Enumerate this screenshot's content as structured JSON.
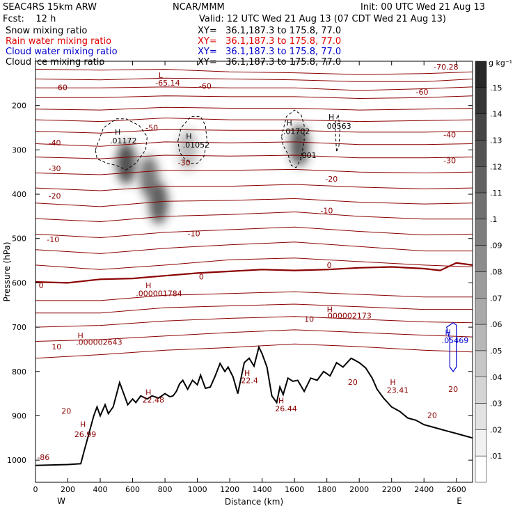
{
  "header": {
    "model": "SEAC4RS 15km ARW",
    "org": "NCAR/MMM",
    "init": "Init: 00 UTC Wed 21 Aug 13",
    "fcst": "Fcst:    12 h",
    "valid": "Valid: 12 UTC Wed 21 Aug 13 (07 CDT Wed 21 Aug 13)",
    "fields": [
      {
        "name": "Snow mixing ratio",
        "xy": "XY=   36.1,187.3 to 175.8, 77.0",
        "color": "#000000"
      },
      {
        "name": "Rain water mixing ratio",
        "xy": "XY=   36.1,187.3 to 175.8, 77.0",
        "color": "#e00000"
      },
      {
        "name": "Cloud water mixing ratio",
        "xy": "XY=   36.1,187.3 to 175.8, 77.0",
        "color": "#0000cc"
      },
      {
        "name": "Cloud ice mixing ratio",
        "xy": "XY=   36.1,187.3 to 175.8, 77.0",
        "color": "#000000"
      }
    ]
  },
  "colors": {
    "temperature_contour": "#8b0000",
    "zero_contour": "#8b0000",
    "terrain": "#000000",
    "cloud_water": "#0000cc",
    "shading": "#333333"
  },
  "chart_data": {
    "type": "cross-section",
    "xlabel": "Distance (km)",
    "ylabel": "Pressure (hPa)",
    "xlim": [
      0,
      2700
    ],
    "ylim": [
      1050,
      100
    ],
    "x_ticks": [
      "0",
      "200",
      "400",
      "600",
      "800",
      "1000",
      "1200",
      "1400",
      "1600",
      "1800",
      "2000",
      "2200",
      "2400",
      "2600"
    ],
    "y_ticks": [
      "200",
      "300",
      "400",
      "500",
      "600",
      "700",
      "800",
      "900",
      "1000"
    ],
    "y_tick_values": [
      200,
      300,
      400,
      500,
      600,
      700,
      800,
      900,
      1000
    ],
    "x_endpoints": {
      "left": "W",
      "right": "E"
    },
    "colorbar": {
      "unit": "g kg⁻¹",
      "labels": [
        ".01",
        ".02",
        ".03",
        ".04",
        ".05",
        ".06",
        ".07",
        ".08",
        ".09",
        ".1",
        ".11",
        ".12",
        ".13",
        ".14",
        ".15"
      ],
      "levels": [
        0.01,
        0.02,
        0.03,
        0.04,
        0.05,
        0.06,
        0.07,
        0.08,
        0.09,
        0.1,
        0.11,
        0.12,
        0.13,
        0.14,
        0.15
      ]
    },
    "terrain": {
      "x": [
        0,
        200,
        280,
        300,
        330,
        360,
        380,
        400,
        430,
        450,
        480,
        520,
        570,
        600,
        620,
        650,
        690,
        720,
        760,
        800,
        830,
        850,
        870,
        890,
        910,
        940,
        970,
        1000,
        1020,
        1050,
        1080,
        1110,
        1140,
        1170,
        1190,
        1220,
        1250,
        1290,
        1320,
        1350,
        1380,
        1400,
        1430,
        1460,
        1490,
        1510,
        1530,
        1560,
        1590,
        1620,
        1660,
        1700,
        1740,
        1780,
        1820,
        1860,
        1900,
        1950,
        2000,
        2040,
        2080,
        2110,
        2150,
        2200,
        2250,
        2300,
        2350,
        2400,
        2450,
        2500,
        2550,
        2600,
        2650,
        2700
      ],
      "p": [
        1012,
        1010,
        1008,
        980,
        940,
        900,
        880,
        900,
        875,
        895,
        880,
        825,
        875,
        862,
        870,
        855,
        862,
        855,
        860,
        850,
        857,
        855,
        845,
        828,
        820,
        840,
        820,
        830,
        808,
        838,
        835,
        810,
        782,
        800,
        790,
        812,
        850,
        780,
        770,
        788,
        745,
        760,
        790,
        855,
        870,
        835,
        852,
        815,
        822,
        820,
        845,
        815,
        820,
        800,
        810,
        780,
        790,
        770,
        780,
        792,
        815,
        840,
        860,
        880,
        890,
        905,
        910,
        920,
        925,
        930,
        935,
        940,
        945,
        950
      ]
    },
    "isotherms": [
      {
        "label": "-60",
        "x": [
          0,
          400,
          800,
          1200,
          1600,
          2000,
          2400,
          2700
        ],
        "p": [
          118,
          120,
          118,
          124,
          126,
          130,
          128,
          124
        ]
      },
      {
        "label": "-60",
        "x": [
          0,
          400,
          800,
          1200,
          1600,
          2000,
          2400,
          2700
        ],
        "p": [
          140,
          142,
          138,
          140,
          142,
          146,
          146,
          140
        ]
      },
      {
        "label": "-60",
        "x": [
          0,
          400,
          800,
          1200,
          1600,
          2000,
          2400,
          2700
        ],
        "p": [
          160,
          160,
          158,
          160,
          160,
          166,
          162,
          158
        ]
      },
      {
        "label": "-50",
        "x": [
          0,
          400,
          800,
          1200,
          1600,
          2000,
          2400,
          2700
        ],
        "p": [
          182,
          182,
          178,
          180,
          180,
          184,
          182,
          178
        ]
      },
      {
        "label": "-40",
        "x": [
          0,
          400,
          800,
          1200,
          1600,
          2000,
          2400,
          2700
        ],
        "p": [
          208,
          210,
          204,
          206,
          206,
          210,
          208,
          206
        ]
      },
      {
        "label": "-40",
        "x": [
          0,
          400,
          800,
          1200,
          1600,
          2000,
          2400,
          2700
        ],
        "p": [
          232,
          236,
          228,
          232,
          232,
          236,
          234,
          232
        ]
      },
      {
        "label": "-30",
        "x": [
          0,
          400,
          800,
          1200,
          1600,
          2000,
          2400,
          2700
        ],
        "p": [
          258,
          262,
          254,
          256,
          256,
          260,
          260,
          258
        ]
      },
      {
        "label": "-30",
        "x": [
          0,
          400,
          800,
          1200,
          1600,
          2000,
          2400,
          2700
        ],
        "p": [
          286,
          292,
          282,
          284,
          282,
          288,
          288,
          286
        ]
      },
      {
        "label": "-20",
        "x": [
          0,
          400,
          800,
          1200,
          1600,
          2000,
          2400,
          2700
        ],
        "p": [
          316,
          320,
          312,
          314,
          312,
          318,
          318,
          316
        ]
      },
      {
        "label": "-20",
        "x": [
          0,
          400,
          800,
          1200,
          1600,
          2000,
          2400,
          2700
        ],
        "p": [
          352,
          356,
          346,
          346,
          344,
          350,
          352,
          350
        ]
      },
      {
        "label": "-10",
        "x": [
          0,
          400,
          800,
          1200,
          1600,
          2000,
          2400,
          2700
        ],
        "p": [
          386,
          392,
          382,
          382,
          378,
          384,
          388,
          386
        ]
      },
      {
        "label": "-10",
        "x": [
          0,
          400,
          800,
          1200,
          1600,
          2000,
          2400,
          2700
        ],
        "p": [
          420,
          428,
          416,
          414,
          410,
          418,
          422,
          420
        ]
      },
      {
        "label": "-10",
        "x": [
          0,
          400,
          800,
          1200,
          1600,
          2000,
          2400,
          2700
        ],
        "p": [
          455,
          462,
          450,
          446,
          440,
          450,
          456,
          456
        ]
      },
      {
        "label": "0",
        "x": [
          0,
          400,
          800,
          1200,
          1600,
          2000,
          2400,
          2700
        ],
        "p": [
          490,
          498,
          486,
          480,
          474,
          484,
          492,
          490
        ]
      },
      {
        "label": "0",
        "x": [
          0,
          400,
          800,
          1200,
          1600,
          2000,
          2400,
          2700
        ],
        "p": [
          525,
          534,
          522,
          514,
          508,
          518,
          528,
          528
        ]
      },
      {
        "label": "10",
        "x": [
          0,
          400,
          800,
          1200,
          1600,
          2000,
          2400,
          2700
        ],
        "p": [
          560,
          570,
          560,
          548,
          544,
          552,
          560,
          564
        ]
      },
      {
        "label": "10",
        "x": [
          0,
          400,
          800,
          1200,
          1600,
          2000,
          2400,
          2700
        ],
        "p": [
          640,
          640,
          628,
          624,
          620,
          626,
          632,
          632
        ]
      },
      {
        "label": "10",
        "x": [
          0,
          400,
          800,
          1200,
          1600,
          2000,
          2400,
          2700
        ],
        "p": [
          668,
          668,
          656,
          652,
          648,
          654,
          660,
          660
        ]
      },
      {
        "label": "10",
        "x": [
          0,
          400,
          800,
          1200,
          1600,
          2000,
          2400,
          2700
        ],
        "p": [
          700,
          696,
          686,
          680,
          676,
          682,
          688,
          690
        ]
      },
      {
        "label": "20",
        "x": [
          0,
          400,
          800,
          1200,
          1600,
          2000,
          2400,
          2700
        ],
        "p": [
          732,
          728,
          720,
          712,
          706,
          712,
          718,
          722
        ]
      },
      {
        "label": "20",
        "x": [
          0,
          400,
          800,
          1200,
          1600,
          2000,
          2400,
          2700
        ],
        "p": [
          770,
          762,
          752,
          746,
          738,
          744,
          752,
          756
        ]
      }
    ],
    "zero_isotherm": {
      "label": "0",
      "x": [
        0,
        200,
        400,
        600,
        800,
        1000,
        1200,
        1400,
        1600,
        1800,
        2000,
        2200,
        2400,
        2500,
        2600,
        2700
      ],
      "p": [
        598,
        600,
        592,
        590,
        584,
        578,
        574,
        570,
        572,
        570,
        566,
        564,
        568,
        572,
        555,
        560
      ]
    },
    "shading": [
      {
        "x": 560,
        "p": 330,
        "value": 0.13
      },
      {
        "x": 700,
        "p": 360,
        "value": 0.1
      },
      {
        "x": 760,
        "p": 420,
        "value": 0.12
      },
      {
        "x": 940,
        "p": 300,
        "value": 0.05
      },
      {
        "x": 1630,
        "p": 290,
        "value": 0.12
      }
    ],
    "labels": [
      {
        "text": "L",
        "x": 760,
        "p": 138,
        "cls": "clab"
      },
      {
        "text": "-65.14",
        "x": 740,
        "p": 155,
        "cls": "clab"
      },
      {
        "text": "-70.28",
        "x": 2460,
        "p": 119,
        "cls": "clab"
      },
      {
        "text": "-60",
        "x": 120,
        "p": 165,
        "cls": "clab"
      },
      {
        "text": "-60",
        "x": 1010,
        "p": 162,
        "cls": "clab"
      },
      {
        "text": "-60",
        "x": 2350,
        "p": 175,
        "cls": "clab"
      },
      {
        "text": "-50",
        "x": 680,
        "p": 256,
        "cls": "clab"
      },
      {
        "text": "-40",
        "x": 80,
        "p": 290,
        "cls": "clab"
      },
      {
        "text": "-40",
        "x": 2520,
        "p": 272,
        "cls": "clab"
      },
      {
        "text": "-30",
        "x": 80,
        "p": 348,
        "cls": "clab"
      },
      {
        "text": "-30",
        "x": 880,
        "p": 335,
        "cls": "clab"
      },
      {
        "text": "-30",
        "x": 2520,
        "p": 330,
        "cls": "clab"
      },
      {
        "text": "-20",
        "x": 80,
        "p": 410,
        "cls": "clab"
      },
      {
        "text": "-20",
        "x": 1790,
        "p": 372,
        "cls": "clab"
      },
      {
        "text": "-10",
        "x": 70,
        "p": 508,
        "cls": "clab"
      },
      {
        "text": "-10",
        "x": 940,
        "p": 495,
        "cls": "clab"
      },
      {
        "text": "-10",
        "x": 1760,
        "p": 443,
        "cls": "clab"
      },
      {
        "text": "0",
        "x": 20,
        "p": 612,
        "cls": "clab"
      },
      {
        "text": "0",
        "x": 1010,
        "p": 592,
        "cls": "clab"
      },
      {
        "text": "0",
        "x": 1800,
        "p": 566,
        "cls": "clab"
      },
      {
        "text": "H",
        "x": 680,
        "p": 612,
        "cls": "clab"
      },
      {
        "text": ".000001784",
        "x": 620,
        "p": 630,
        "cls": "clab"
      },
      {
        "text": "H",
        "x": 1800,
        "p": 666,
        "cls": "clab"
      },
      {
        "text": ".000002173",
        "x": 1790,
        "p": 680,
        "cls": "clab"
      },
      {
        "text": "10",
        "x": 1660,
        "p": 688,
        "cls": "clab"
      },
      {
        "text": "H",
        "x": 260,
        "p": 725,
        "cls": "clab"
      },
      {
        "text": ".000002643",
        "x": 250,
        "p": 740,
        "cls": "clab"
      },
      {
        "text": "10",
        "x": 100,
        "p": 750,
        "cls": "clab"
      },
      {
        "text": "20",
        "x": 1930,
        "p": 830,
        "cls": "clab"
      },
      {
        "text": "20",
        "x": 2550,
        "p": 846,
        "cls": "clab"
      },
      {
        "text": "20",
        "x": 160,
        "p": 895,
        "cls": "clab"
      },
      {
        "text": "20",
        "x": 2420,
        "p": 905,
        "cls": "clab"
      },
      {
        "text": "H",
        "x": 275,
        "p": 925,
        "cls": "clab"
      },
      {
        "text": "26.99",
        "x": 240,
        "p": 948,
        "cls": "clab"
      },
      {
        "text": "H",
        "x": 680,
        "p": 853,
        "cls": "clab"
      },
      {
        "text": "22.48",
        "x": 660,
        "p": 870,
        "cls": "clab"
      },
      {
        "text": "H",
        "x": 1290,
        "p": 810,
        "cls": "clab"
      },
      {
        "text": "22.4",
        "x": 1270,
        "p": 826,
        "cls": "clab"
      },
      {
        "text": "H",
        "x": 1500,
        "p": 872,
        "cls": "clab"
      },
      {
        "text": "26.44",
        "x": 1480,
        "p": 890,
        "cls": "clab"
      },
      {
        "text": "H",
        "x": 2190,
        "p": 830,
        "cls": "clab"
      },
      {
        "text": "23.41",
        "x": 2170,
        "p": 848,
        "cls": "clab"
      },
      {
        "text": "-86",
        "x": 10,
        "p": 1000,
        "cls": "clab"
      },
      {
        "text": "H",
        "x": 490,
        "p": 266,
        "cls": "blab"
      },
      {
        "text": ".01172",
        "x": 460,
        "p": 285,
        "cls": "blab"
      },
      {
        "text": "H",
        "x": 930,
        "p": 275,
        "cls": "blab"
      },
      {
        "text": ".01052",
        "x": 910,
        "p": 295,
        "cls": "blab"
      },
      {
        "text": "H",
        "x": 1550,
        "p": 245,
        "cls": "blab"
      },
      {
        "text": ".01702",
        "x": 1530,
        "p": 264,
        "cls": "blab"
      },
      {
        "text": ".001",
        "x": 1630,
        "p": 318,
        "cls": "blab"
      },
      {
        "text": "H",
        "x": 1810,
        "p": 232,
        "cls": "blab"
      },
      {
        "text": "00563",
        "x": 1800,
        "p": 252,
        "cls": "blab"
      },
      {
        "text": "H",
        "x": 2530,
        "p": 718,
        "cls": "bluelab"
      },
      {
        "text": ".05469",
        "x": 2510,
        "p": 736,
        "cls": "bluelab"
      }
    ],
    "dashed_regions": [
      {
        "x": [
          370,
          420,
          500,
          560,
          640,
          690,
          680,
          620,
          560,
          500,
          440,
          380,
          370
        ],
        "p": [
          300,
          250,
          230,
          230,
          245,
          270,
          300,
          330,
          345,
          335,
          330,
          320,
          300
        ]
      },
      {
        "x": [
          880,
          900,
          960,
          1020,
          1050,
          1060,
          1040,
          1000,
          960,
          920,
          890,
          880
        ],
        "p": [
          280,
          250,
          225,
          225,
          245,
          280,
          315,
          330,
          330,
          320,
          305,
          280
        ]
      },
      {
        "x": [
          1520,
          1550,
          1600,
          1640,
          1660,
          1660,
          1640,
          1610,
          1580,
          1560,
          1530,
          1520
        ],
        "p": [
          270,
          225,
          210,
          220,
          245,
          280,
          320,
          340,
          335,
          310,
          290,
          270
        ]
      },
      {
        "x": [
          1850,
          1870,
          1880,
          1875,
          1860,
          1850
        ],
        "p": [
          240,
          220,
          250,
          290,
          305,
          240
        ]
      }
    ],
    "blue_region": {
      "x": [
        2540,
        2580,
        2600,
        2600,
        2580,
        2560,
        2560,
        2540
      ],
      "p": [
        700,
        690,
        695,
        790,
        800,
        790,
        730,
        700
      ]
    }
  }
}
